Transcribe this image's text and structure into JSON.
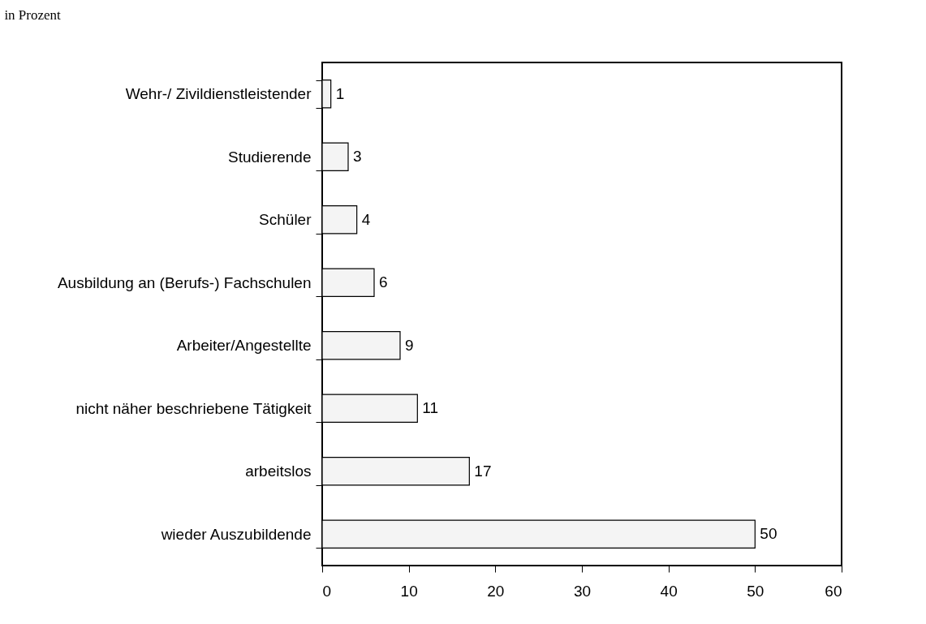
{
  "chart_data": {
    "type": "bar",
    "orientation": "horizontal",
    "title": "in Prozent",
    "categories": [
      "Wehr-/ Zivildienstleistender",
      "Studierende",
      "Schüler",
      "Ausbildung an (Berufs-) Fachschulen",
      "Arbeiter/Angestellte",
      "nicht näher beschriebene Tätigkeit",
      "arbeitslos",
      "wieder Auszubildende"
    ],
    "values": [
      1,
      3,
      4,
      6,
      9,
      11,
      17,
      50
    ],
    "color": "#f4f4f4",
    "xlim": [
      0,
      60
    ],
    "xticks": [
      0,
      10,
      20,
      30,
      40,
      50,
      60
    ],
    "grid": false,
    "data_labels": true
  }
}
